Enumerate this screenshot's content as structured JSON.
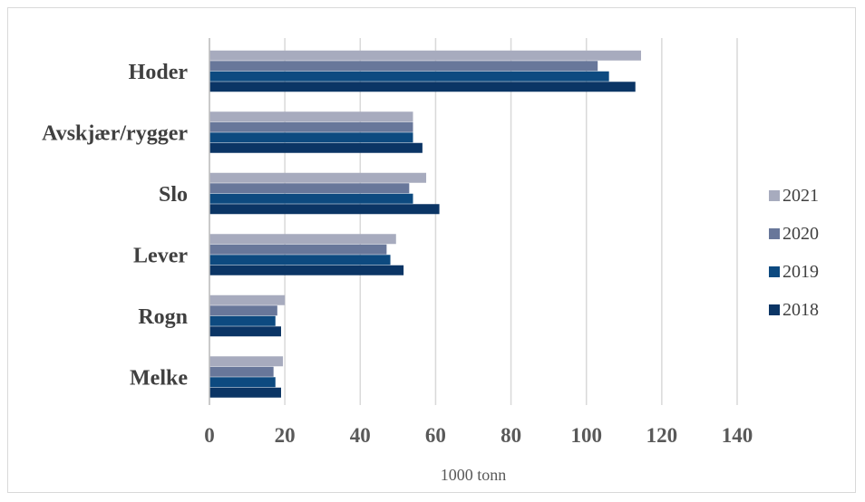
{
  "chart_data": {
    "type": "bar",
    "orientation": "horizontal",
    "title": "",
    "xlabel": "1000 tonn",
    "ylabel": "",
    "categories": [
      "Hoder",
      "Avskjær/rygger",
      "Slo",
      "Lever",
      "Rogn",
      "Melke"
    ],
    "series": [
      {
        "name": "2021",
        "color": "#a7abbe",
        "values": [
          114.5,
          54,
          57.5,
          49.5,
          20,
          19.5
        ]
      },
      {
        "name": "2020",
        "color": "#68779a",
        "values": [
          103,
          54,
          53,
          47,
          18,
          17
        ]
      },
      {
        "name": "2019",
        "color": "#0d4a80",
        "values": [
          106,
          54,
          54,
          48,
          17.5,
          17.5
        ]
      },
      {
        "name": "2018",
        "color": "#0b3565",
        "values": [
          113,
          56.5,
          61,
          51.5,
          19,
          19
        ]
      }
    ],
    "xlim": [
      0,
      140
    ],
    "xticks": [
      "0",
      "20",
      "40",
      "60",
      "80",
      "100",
      "120",
      "140"
    ],
    "grid": "vertical",
    "legend": "right",
    "legend_order": [
      "2021",
      "2020",
      "2019",
      "2018"
    ]
  }
}
